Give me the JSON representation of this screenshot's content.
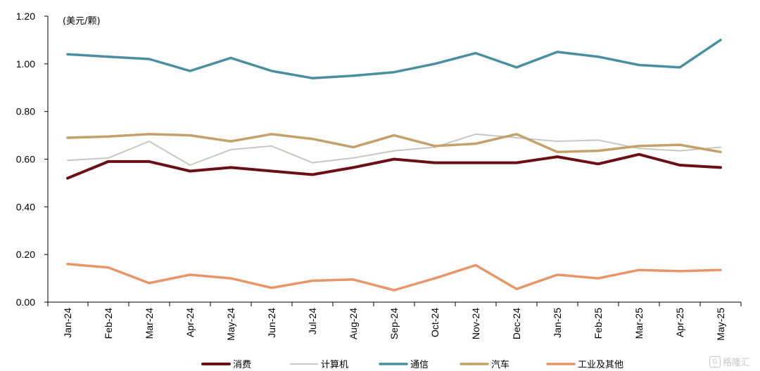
{
  "chart_data": {
    "type": "line",
    "unit_label": "(美元/颗)",
    "categories": [
      "Jan-24",
      "Feb-24",
      "Mar-24",
      "Apr-24",
      "May-24",
      "Jun-24",
      "Jul-24",
      "Aug-24",
      "Sep-24",
      "Oct-24",
      "Nov-24",
      "Dec-24",
      "Jan-25",
      "Feb-25",
      "Mar-25",
      "Apr-25",
      "May-25"
    ],
    "ylim": [
      0,
      1.2
    ],
    "yticks": [
      "0.00",
      "0.20",
      "0.40",
      "0.60",
      "0.80",
      "1.00",
      "1.20"
    ],
    "grid": false,
    "legend_position": "bottom",
    "series": [
      {
        "name": "消费",
        "color": "#6b0f16",
        "width": 4,
        "values": [
          0.52,
          0.59,
          0.59,
          0.55,
          0.565,
          0.55,
          0.535,
          0.565,
          0.6,
          0.585,
          0.585,
          0.585,
          0.61,
          0.58,
          0.62,
          0.575,
          0.565
        ]
      },
      {
        "name": "计算机",
        "color": "#c8c8c0",
        "width": 2,
        "values": [
          0.595,
          0.605,
          0.675,
          0.575,
          0.64,
          0.655,
          0.585,
          0.605,
          0.635,
          0.65,
          0.705,
          0.69,
          0.675,
          0.68,
          0.645,
          0.635,
          0.65
        ]
      },
      {
        "name": "通信",
        "color": "#4a8fa1",
        "width": 3.5,
        "values": [
          1.04,
          1.03,
          1.02,
          0.97,
          1.025,
          0.97,
          0.94,
          0.95,
          0.965,
          1.0,
          1.045,
          0.985,
          1.05,
          1.03,
          0.995,
          0.985,
          1.1
        ]
      },
      {
        "name": "汽车",
        "color": "#c4a06b",
        "width": 3.5,
        "values": [
          0.69,
          0.695,
          0.705,
          0.7,
          0.675,
          0.705,
          0.685,
          0.65,
          0.7,
          0.655,
          0.665,
          0.705,
          0.63,
          0.635,
          0.655,
          0.66,
          0.63
        ]
      },
      {
        "name": "工业及其他",
        "color": "#e8956a",
        "width": 3.5,
        "values": [
          0.16,
          0.145,
          0.08,
          0.115,
          0.1,
          0.06,
          0.09,
          0.095,
          0.05,
          0.1,
          0.155,
          0.055,
          0.115,
          0.1,
          0.135,
          0.13,
          0.135
        ]
      }
    ]
  },
  "watermark": {
    "text": "格隆汇",
    "icon": "G"
  }
}
